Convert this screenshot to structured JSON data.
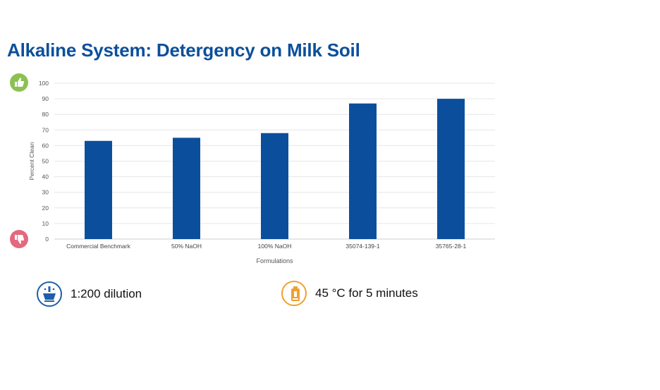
{
  "title": "Alkaline System: Detergency on Milk Soil",
  "conditions": {
    "dilution": {
      "label": "1:200 dilution",
      "icon": "dilution-icon"
    },
    "temperature": {
      "label": "45 °C for 5 minutes",
      "icon": "temperature-icon"
    }
  },
  "indicators": {
    "good": {
      "icon": "thumbs-up-icon",
      "color": "#8cc152"
    },
    "bad": {
      "icon": "thumbs-down-icon",
      "color": "#e3697f"
    }
  },
  "chart_data": {
    "type": "bar",
    "categories": [
      "Commercial Benchmark",
      "50% NaOH",
      "100% NaOH",
      "35074-139-1",
      "35765-28-1"
    ],
    "values": [
      63,
      65,
      68,
      87,
      90
    ],
    "xlabel": "Formulations",
    "ylabel": "Percent Clean",
    "ylim": [
      0,
      100
    ],
    "yticks": [
      0,
      10,
      20,
      30,
      40,
      50,
      60,
      70,
      80,
      90,
      100
    ],
    "grid": true,
    "bar_color": "#0b4f9c"
  }
}
